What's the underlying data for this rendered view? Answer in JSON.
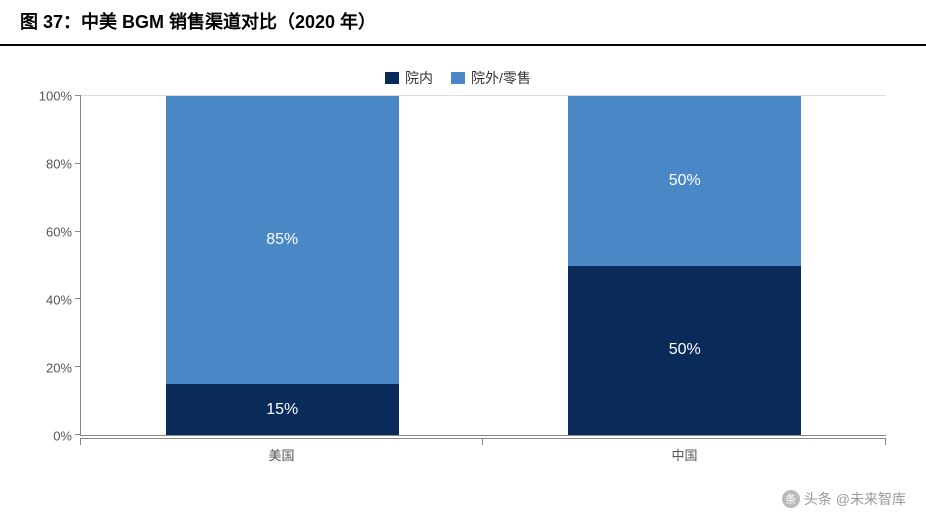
{
  "title": "图 37：中美 BGM 销售渠道对比（2020 年）",
  "chart": {
    "type": "stacked-bar-100",
    "categories": [
      "美国",
      "中国"
    ],
    "series": [
      {
        "name": "院内",
        "color": "#0a2b5a",
        "values": [
          15,
          50
        ]
      },
      {
        "name": "院外/零售",
        "color": "#4a87c7",
        "values": [
          85,
          50
        ]
      }
    ],
    "value_labels": [
      [
        "15%",
        "85%"
      ],
      [
        "50%",
        "50%"
      ]
    ],
    "ylim": [
      0,
      100
    ],
    "ytick_step": 20,
    "yticks": [
      "0%",
      "20%",
      "40%",
      "60%",
      "80%",
      "100%"
    ],
    "background_color": "#ffffff",
    "grid_color": "#dddddd",
    "axis_color": "#888888",
    "bar_width_pct": 58,
    "label_fontsize": 16,
    "label_color": "#ffffff",
    "tick_fontsize": 13,
    "title_fontsize": 18,
    "title_fontweight": "bold",
    "legend_position": "top-center"
  },
  "watermark": {
    "prefix": "头条",
    "account": "@未来智库"
  }
}
